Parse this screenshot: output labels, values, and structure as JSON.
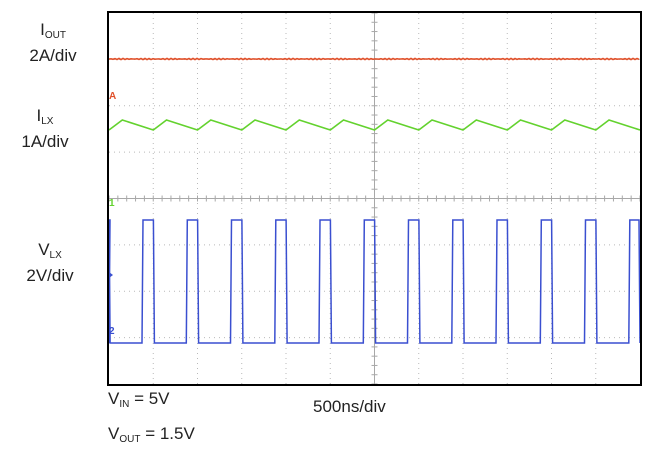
{
  "chart_data": {
    "type": "line",
    "series": [
      {
        "label": "I",
        "sub": "OUT",
        "scale": "2A/div",
        "color": "#e0502a",
        "shape": "flat"
      },
      {
        "label": "I",
        "sub": "LX",
        "scale": "1A/div",
        "color": "#63d22e",
        "shape": "triangle"
      },
      {
        "label": "V",
        "sub": "LX",
        "scale": "2V/div",
        "color": "#3a4fd0",
        "shape": "square"
      }
    ],
    "xscale": "500ns/div",
    "grid": {
      "divisions_x": 12,
      "divisions_y": 8
    },
    "pulses_per_screen": 12,
    "markers": {
      "ch1": "1",
      "ch2": "2",
      "chA": "A"
    },
    "conditions": [
      {
        "label": "V",
        "sub": "IN",
        "value": "= 5V"
      },
      {
        "label": "V",
        "sub": "OUT",
        "value": "= 1.5V"
      }
    ]
  }
}
